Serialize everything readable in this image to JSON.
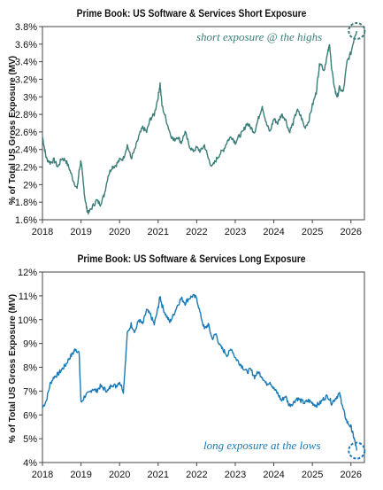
{
  "chart_data": [
    {
      "type": "line",
      "title": "Prime Book: US Software & Services Short Exposure",
      "ylabel": "% of Total US Gross Exposure (MV)",
      "xlabel": "",
      "x_ticks": [
        "2018",
        "2019",
        "2020",
        "2021",
        "2022",
        "2023",
        "2024",
        "2025",
        "2026"
      ],
      "y_ticks": [
        "1.6%",
        "1.8%",
        "2%",
        "2.2%",
        "2.4%",
        "2.6%",
        "2.8%",
        "3%",
        "3.2%",
        "3.4%",
        "3.6%",
        "3.8%"
      ],
      "xlim": [
        2018.0,
        2026.35
      ],
      "ylim": [
        1.6,
        3.8
      ],
      "color": "#3a7d78",
      "annotation": "short exposure @ the highs",
      "annotation_color": "#3a7d78",
      "points": [
        [
          2018.0,
          2.55
        ],
        [
          2018.05,
          2.42
        ],
        [
          2018.1,
          2.3
        ],
        [
          2018.2,
          2.25
        ],
        [
          2018.3,
          2.28
        ],
        [
          2018.4,
          2.2
        ],
        [
          2018.5,
          2.3
        ],
        [
          2018.6,
          2.28
        ],
        [
          2018.7,
          2.18
        ],
        [
          2018.8,
          2.05
        ],
        [
          2018.9,
          1.95
        ],
        [
          2018.95,
          2.15
        ],
        [
          2019.0,
          2.28
        ],
        [
          2019.05,
          2.05
        ],
        [
          2019.1,
          1.85
        ],
        [
          2019.15,
          1.72
        ],
        [
          2019.2,
          1.68
        ],
        [
          2019.3,
          1.75
        ],
        [
          2019.4,
          1.82
        ],
        [
          2019.5,
          1.78
        ],
        [
          2019.6,
          1.88
        ],
        [
          2019.7,
          2.1
        ],
        [
          2019.8,
          2.2
        ],
        [
          2019.9,
          2.22
        ],
        [
          2020.0,
          2.28
        ],
        [
          2020.1,
          2.3
        ],
        [
          2020.2,
          2.45
        ],
        [
          2020.3,
          2.3
        ],
        [
          2020.4,
          2.4
        ],
        [
          2020.5,
          2.55
        ],
        [
          2020.6,
          2.65
        ],
        [
          2020.7,
          2.6
        ],
        [
          2020.8,
          2.75
        ],
        [
          2020.9,
          2.8
        ],
        [
          2021.0,
          3.0
        ],
        [
          2021.05,
          3.15
        ],
        [
          2021.1,
          2.9
        ],
        [
          2021.2,
          2.75
        ],
        [
          2021.3,
          2.6
        ],
        [
          2021.4,
          2.5
        ],
        [
          2021.5,
          2.55
        ],
        [
          2021.6,
          2.48
        ],
        [
          2021.7,
          2.6
        ],
        [
          2021.8,
          2.45
        ],
        [
          2021.9,
          2.38
        ],
        [
          2022.0,
          2.42
        ],
        [
          2022.1,
          2.38
        ],
        [
          2022.2,
          2.45
        ],
        [
          2022.3,
          2.3
        ],
        [
          2022.4,
          2.2
        ],
        [
          2022.5,
          2.28
        ],
        [
          2022.6,
          2.35
        ],
        [
          2022.7,
          2.4
        ],
        [
          2022.8,
          2.5
        ],
        [
          2022.9,
          2.55
        ],
        [
          2023.0,
          2.48
        ],
        [
          2023.1,
          2.55
        ],
        [
          2023.2,
          2.6
        ],
        [
          2023.3,
          2.7
        ],
        [
          2023.4,
          2.65
        ],
        [
          2023.5,
          2.6
        ],
        [
          2023.6,
          2.75
        ],
        [
          2023.7,
          2.9
        ],
        [
          2023.8,
          2.7
        ],
        [
          2023.9,
          2.6
        ],
        [
          2024.0,
          2.75
        ],
        [
          2024.1,
          2.7
        ],
        [
          2024.2,
          2.8
        ],
        [
          2024.3,
          2.75
        ],
        [
          2024.4,
          2.6
        ],
        [
          2024.5,
          2.7
        ],
        [
          2024.6,
          2.85
        ],
        [
          2024.7,
          2.78
        ],
        [
          2024.8,
          2.65
        ],
        [
          2024.9,
          2.72
        ],
        [
          2025.0,
          2.9
        ],
        [
          2025.1,
          3.05
        ],
        [
          2025.15,
          3.25
        ],
        [
          2025.2,
          3.4
        ],
        [
          2025.3,
          3.3
        ],
        [
          2025.4,
          3.5
        ],
        [
          2025.45,
          3.6
        ],
        [
          2025.5,
          3.3
        ],
        [
          2025.6,
          3.05
        ],
        [
          2025.65,
          3.0
        ],
        [
          2025.7,
          3.1
        ],
        [
          2025.8,
          3.05
        ],
        [
          2025.9,
          3.4
        ],
        [
          2026.0,
          3.5
        ],
        [
          2026.1,
          3.7
        ],
        [
          2026.15,
          3.75
        ]
      ]
    },
    {
      "type": "line",
      "title": "Prime Book: US Software & Services Long Exposure",
      "ylabel": "% of Total US Gross Exposure (MV)",
      "xlabel": "",
      "x_ticks": [
        "2018",
        "2019",
        "2020",
        "2021",
        "2022",
        "2023",
        "2024",
        "2025",
        "2026"
      ],
      "y_ticks": [
        "4%",
        "5%",
        "6%",
        "7%",
        "8%",
        "9%",
        "10%",
        "11%",
        "12%"
      ],
      "xlim": [
        2018.0,
        2026.35
      ],
      "ylim": [
        4,
        12
      ],
      "color": "#1a7ab5",
      "annotation": "long exposure at the lows",
      "annotation_color": "#1a7ab5",
      "points": [
        [
          2018.0,
          6.3
        ],
        [
          2018.1,
          6.6
        ],
        [
          2018.2,
          7.3
        ],
        [
          2018.3,
          7.6
        ],
        [
          2018.4,
          7.7
        ],
        [
          2018.5,
          7.9
        ],
        [
          2018.6,
          8.1
        ],
        [
          2018.7,
          8.4
        ],
        [
          2018.8,
          8.6
        ],
        [
          2018.85,
          8.8
        ],
        [
          2018.95,
          8.6
        ],
        [
          2019.0,
          6.5
        ],
        [
          2019.1,
          6.8
        ],
        [
          2019.2,
          6.9
        ],
        [
          2019.3,
          7.1
        ],
        [
          2019.4,
          7.0
        ],
        [
          2019.5,
          7.2
        ],
        [
          2019.6,
          7.1
        ],
        [
          2019.7,
          7.0
        ],
        [
          2019.8,
          7.3
        ],
        [
          2019.9,
          7.2
        ],
        [
          2020.0,
          7.4
        ],
        [
          2020.1,
          7.0
        ],
        [
          2020.15,
          8.2
        ],
        [
          2020.2,
          9.4
        ],
        [
          2020.3,
          9.8
        ],
        [
          2020.4,
          9.5
        ],
        [
          2020.5,
          10.0
        ],
        [
          2020.6,
          9.8
        ],
        [
          2020.7,
          10.4
        ],
        [
          2020.8,
          10.2
        ],
        [
          2020.9,
          9.8
        ],
        [
          2021.0,
          10.5
        ],
        [
          2021.05,
          11.0
        ],
        [
          2021.1,
          10.6
        ],
        [
          2021.2,
          10.2
        ],
        [
          2021.3,
          9.9
        ],
        [
          2021.4,
          10.2
        ],
        [
          2021.5,
          10.6
        ],
        [
          2021.6,
          10.9
        ],
        [
          2021.7,
          10.7
        ],
        [
          2021.8,
          10.9
        ],
        [
          2021.9,
          11.0
        ],
        [
          2022.0,
          10.9
        ],
        [
          2022.1,
          10.2
        ],
        [
          2022.2,
          9.6
        ],
        [
          2022.3,
          9.8
        ],
        [
          2022.4,
          9.2
        ],
        [
          2022.5,
          9.4
        ],
        [
          2022.6,
          8.9
        ],
        [
          2022.7,
          8.7
        ],
        [
          2022.8,
          8.5
        ],
        [
          2022.9,
          8.8
        ],
        [
          2023.0,
          8.4
        ],
        [
          2023.1,
          8.2
        ],
        [
          2023.2,
          8.0
        ],
        [
          2023.3,
          7.8
        ],
        [
          2023.4,
          7.9
        ],
        [
          2023.5,
          7.6
        ],
        [
          2023.6,
          7.8
        ],
        [
          2023.7,
          7.6
        ],
        [
          2023.8,
          7.3
        ],
        [
          2023.9,
          7.4
        ],
        [
          2024.0,
          7.1
        ],
        [
          2024.1,
          6.9
        ],
        [
          2024.2,
          6.6
        ],
        [
          2024.3,
          6.8
        ],
        [
          2024.4,
          6.4
        ],
        [
          2024.5,
          6.5
        ],
        [
          2024.6,
          6.7
        ],
        [
          2024.7,
          6.6
        ],
        [
          2024.8,
          6.5
        ],
        [
          2024.9,
          6.6
        ],
        [
          2025.0,
          6.5
        ],
        [
          2025.1,
          6.4
        ],
        [
          2025.2,
          6.5
        ],
        [
          2025.3,
          6.7
        ],
        [
          2025.4,
          6.8
        ],
        [
          2025.5,
          6.5
        ],
        [
          2025.6,
          6.7
        ],
        [
          2025.7,
          6.9
        ],
        [
          2025.75,
          6.6
        ],
        [
          2025.8,
          6.2
        ],
        [
          2025.9,
          5.7
        ],
        [
          2026.0,
          5.5
        ],
        [
          2026.05,
          5.2
        ],
        [
          2026.1,
          4.9
        ],
        [
          2026.15,
          4.5
        ]
      ]
    }
  ]
}
